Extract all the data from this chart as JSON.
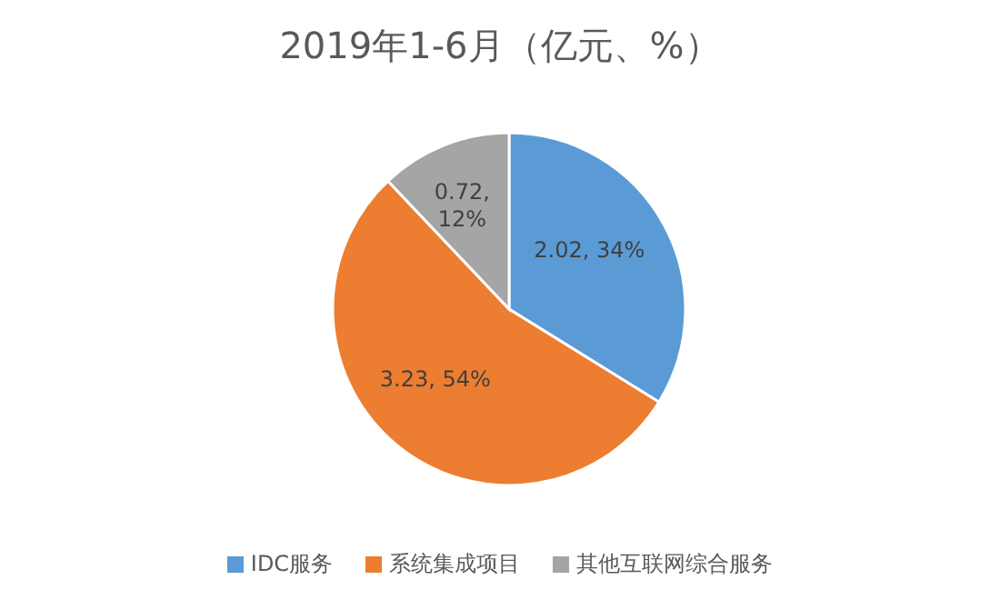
{
  "chart_data": {
    "type": "pie",
    "title": "2019年1-6月（亿元、%）",
    "categories": [
      "IDC服务",
      "系统集成项目",
      "其他互联网综合服务"
    ],
    "values": [
      2.02,
      3.23,
      0.72
    ],
    "colors": [
      "#5b9bd5",
      "#ed7d31",
      "#a5a5a5"
    ],
    "value_labels": [
      "2.02, 34%",
      "3.23, 54%",
      "0.72, 12%"
    ],
    "legend": "bottom"
  }
}
